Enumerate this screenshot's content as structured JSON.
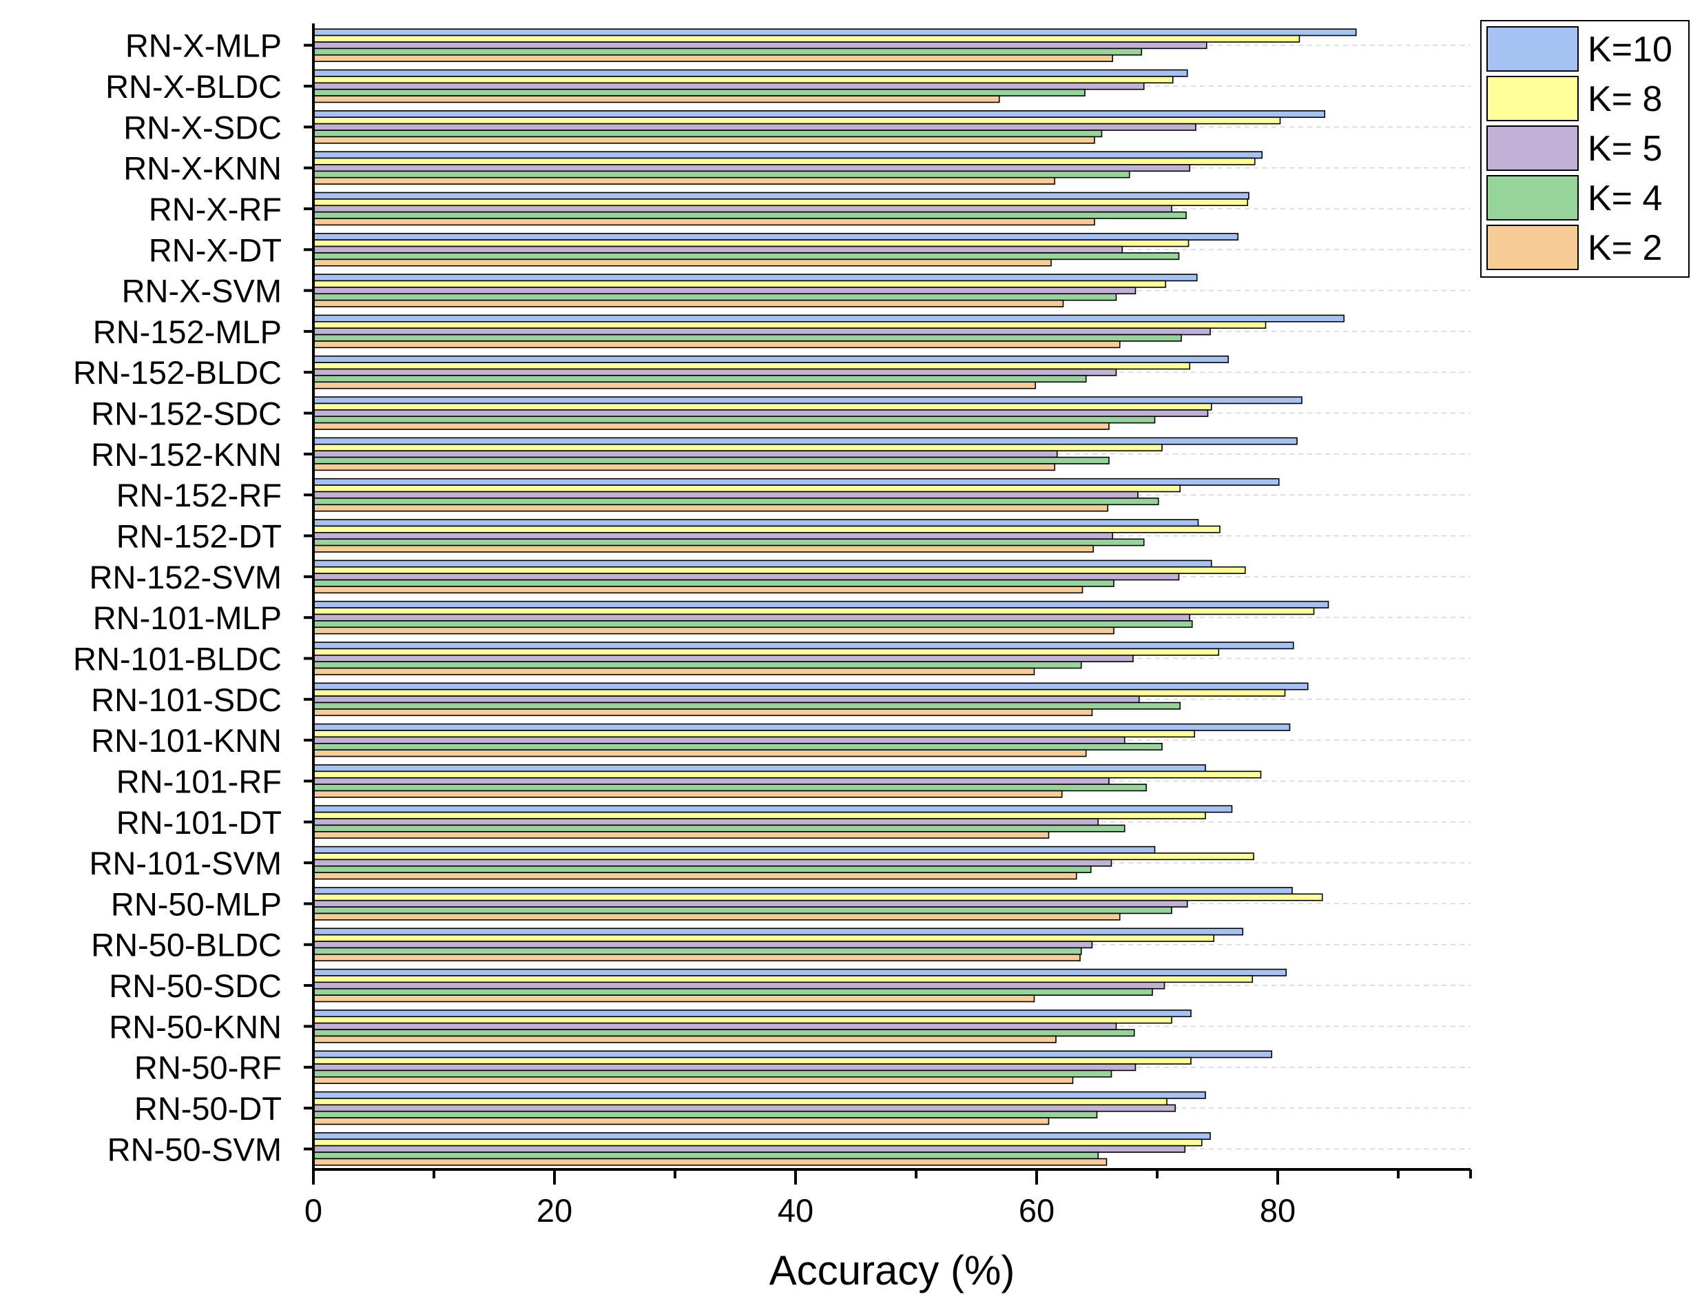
{
  "chart_data": {
    "type": "bar",
    "orientation": "horizontal",
    "title": "",
    "xlabel": "Accuracy (%)",
    "ylabel": "",
    "xlim": [
      0,
      96
    ],
    "xticks": [
      "0",
      "20",
      "40",
      "60",
      "80"
    ],
    "grid": true,
    "legend_position": "top-right",
    "categories": [
      "RN-X-MLP",
      "RN-X-BLDC",
      "RN-X-SDC",
      "RN-X-KNN",
      "RN-X-RF",
      "RN-X-DT",
      "RN-X-SVM",
      "RN-152-MLP",
      "RN-152-BLDC",
      "RN-152-SDC",
      "RN-152-KNN",
      "RN-152-RF",
      "RN-152-DT",
      "RN-152-SVM",
      "RN-101-MLP",
      "RN-101-BLDC",
      "RN-101-SDC",
      "RN-101-KNN",
      "RN-101-RF",
      "RN-101-DT",
      "RN-101-SVM",
      "RN-50-MLP",
      "RN-50-BLDC",
      "RN-50-SDC",
      "RN-50-KNN",
      "RN-50-RF",
      "RN-50-DT",
      "RN-50-SVM"
    ],
    "series": [
      {
        "name": "K=10",
        "color": "#a6c2f2",
        "values": [
          86.5,
          72.5,
          83.9,
          78.7,
          77.6,
          76.7,
          73.3,
          85.5,
          75.9,
          82.0,
          81.6,
          80.1,
          73.4,
          74.5,
          84.2,
          81.3,
          82.5,
          81.0,
          74.0,
          76.2,
          69.8,
          81.2,
          77.1,
          80.7,
          72.8,
          79.5,
          74.0,
          74.4
        ]
      },
      {
        "name": "K= 8",
        "color": "#ffff99",
        "values": [
          81.8,
          71.3,
          80.2,
          78.1,
          77.5,
          72.6,
          70.7,
          79.0,
          72.7,
          74.5,
          70.4,
          71.9,
          75.2,
          77.3,
          83.0,
          75.1,
          80.6,
          73.1,
          78.6,
          74.0,
          78.0,
          83.7,
          74.7,
          77.9,
          71.2,
          72.8,
          70.8,
          73.7
        ]
      },
      {
        "name": "K= 5",
        "color": "#c1b1d6",
        "values": [
          74.1,
          68.9,
          73.2,
          72.7,
          71.2,
          67.1,
          68.2,
          74.4,
          66.6,
          74.2,
          61.7,
          68.4,
          66.3,
          71.8,
          72.7,
          68.0,
          68.5,
          67.3,
          66.0,
          65.1,
          66.2,
          72.5,
          64.6,
          70.6,
          66.6,
          68.2,
          71.5,
          72.3
        ]
      },
      {
        "name": "K= 4",
        "color": "#97d49a",
        "values": [
          68.7,
          64.0,
          65.4,
          67.7,
          72.4,
          71.8,
          66.6,
          72.0,
          64.1,
          69.8,
          66.0,
          70.1,
          68.9,
          66.4,
          72.9,
          63.7,
          71.9,
          70.4,
          69.1,
          67.3,
          64.5,
          71.2,
          63.7,
          69.6,
          68.1,
          66.2,
          65.0,
          65.1
        ]
      },
      {
        "name": "K= 2",
        "color": "#f8cc96",
        "values": [
          66.3,
          56.9,
          64.8,
          61.5,
          64.8,
          61.2,
          62.2,
          66.9,
          59.9,
          66.0,
          61.5,
          65.9,
          64.7,
          63.8,
          66.4,
          59.8,
          64.6,
          64.1,
          62.1,
          61.0,
          63.3,
          66.9,
          63.6,
          59.8,
          61.6,
          63.0,
          61.0,
          65.8
        ]
      }
    ]
  }
}
